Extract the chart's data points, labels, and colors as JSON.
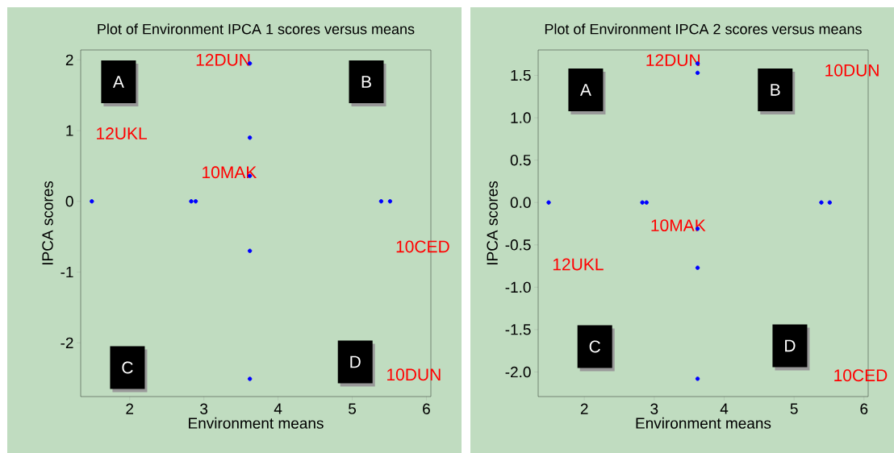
{
  "chart_data": [
    {
      "type": "scatter",
      "title": "Plot of Environment IPCA 1 scores versus means",
      "xlabel": "Environment means",
      "ylabel": "IPCA scores",
      "x": [
        1.49,
        2.83,
        2.89,
        3.62,
        3.62,
        3.62,
        3.62,
        3.62,
        5.39,
        5.51
      ],
      "series": [
        {
          "color": "#0000ff",
          "values": [
            0,
            0,
            0,
            1.95,
            0.9,
            0.36,
            -0.7,
            -2.51,
            0,
            0
          ]
        }
      ],
      "xlim": [
        1.34,
        6.06
      ],
      "ylim": [
        -2.76,
        2.14
      ],
      "xticks": [
        2,
        3,
        4,
        5,
        6
      ],
      "yticks": [
        -2,
        -1,
        0,
        1,
        2
      ],
      "marker": "circle",
      "grid": false,
      "legend": false,
      "annotations": [
        "A",
        "B",
        "C",
        "D",
        "12DUN",
        "12UKL",
        "10MAK",
        "10CED",
        "10DUN"
      ]
    },
    {
      "type": "scatter",
      "title": "Plot of Environment IPCA 2 scores versus means",
      "xlabel": "Environment means",
      "ylabel": "IPCA scores",
      "x": [
        1.49,
        2.83,
        2.89,
        3.62,
        3.62,
        3.62,
        3.62,
        3.62,
        5.39,
        5.51
      ],
      "series": [
        {
          "color": "#0000ff",
          "values": [
            0,
            0,
            0,
            1.64,
            1.53,
            -0.31,
            -0.77,
            -2.08,
            0,
            0
          ]
        }
      ],
      "xlim": [
        1.34,
        6.06
      ],
      "ylim": [
        -2.29,
        1.8
      ],
      "xticks": [
        2,
        3,
        4,
        5,
        6
      ],
      "yticks": [
        {
          "value": -2,
          "label": "-2.0"
        },
        -1.5,
        {
          "value": -1,
          "label": "-1.0"
        },
        -0.5,
        {
          "value": 0,
          "label": "0.0"
        },
        0.5,
        {
          "value": 1,
          "label": "1.0"
        },
        1.5
      ],
      "marker": "circle",
      "grid": false,
      "legend": false,
      "annotations": [
        "A",
        "B",
        "C",
        "D",
        "12DUN",
        "10DUN",
        "10MAK",
        "12UKL",
        "10CED"
      ]
    }
  ]
}
